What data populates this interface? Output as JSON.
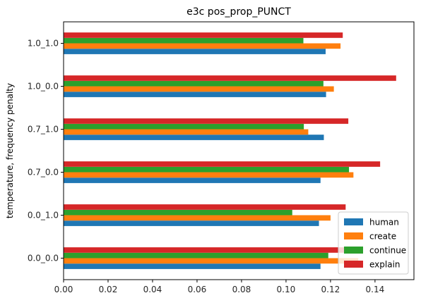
{
  "chart_data": {
    "type": "bar",
    "orientation": "horizontal",
    "title": "e3c pos_prop_PUNCT",
    "xlabel": "",
    "ylabel": "temperature, frequency penalty",
    "xlim": [
      0,
      0.1575
    ],
    "xticks": [
      "0.00",
      "0.02",
      "0.04",
      "0.06",
      "0.08",
      "0.10",
      "0.12",
      "0.14"
    ],
    "xtick_values": [
      0,
      0.02,
      0.04,
      0.06,
      0.08,
      0.1,
      0.12,
      0.14
    ],
    "categories": [
      "0.0_0.0",
      "0.0_1.0",
      "0.7_0.0",
      "0.7_1.0",
      "1.0_0.0",
      "1.0_1.0"
    ],
    "series": [
      {
        "name": "human",
        "color": "#1f77b4",
        "values": [
          0.1155,
          0.1148,
          0.1155,
          0.117,
          0.118,
          0.1178
        ]
      },
      {
        "name": "create",
        "color": "#ff7f0e",
        "values": [
          0.1325,
          0.12,
          0.1303,
          0.11,
          0.1215,
          0.1245
        ]
      },
      {
        "name": "continue",
        "color": "#2ca02c",
        "values": [
          0.119,
          0.1028,
          0.1283,
          0.108,
          0.1168,
          0.1078
        ]
      },
      {
        "name": "explain",
        "color": "#d62728",
        "values": [
          0.13,
          0.1268,
          0.1423,
          0.128,
          0.1495,
          0.1255
        ]
      }
    ],
    "legend_position": "lower-right",
    "grid": false
  }
}
